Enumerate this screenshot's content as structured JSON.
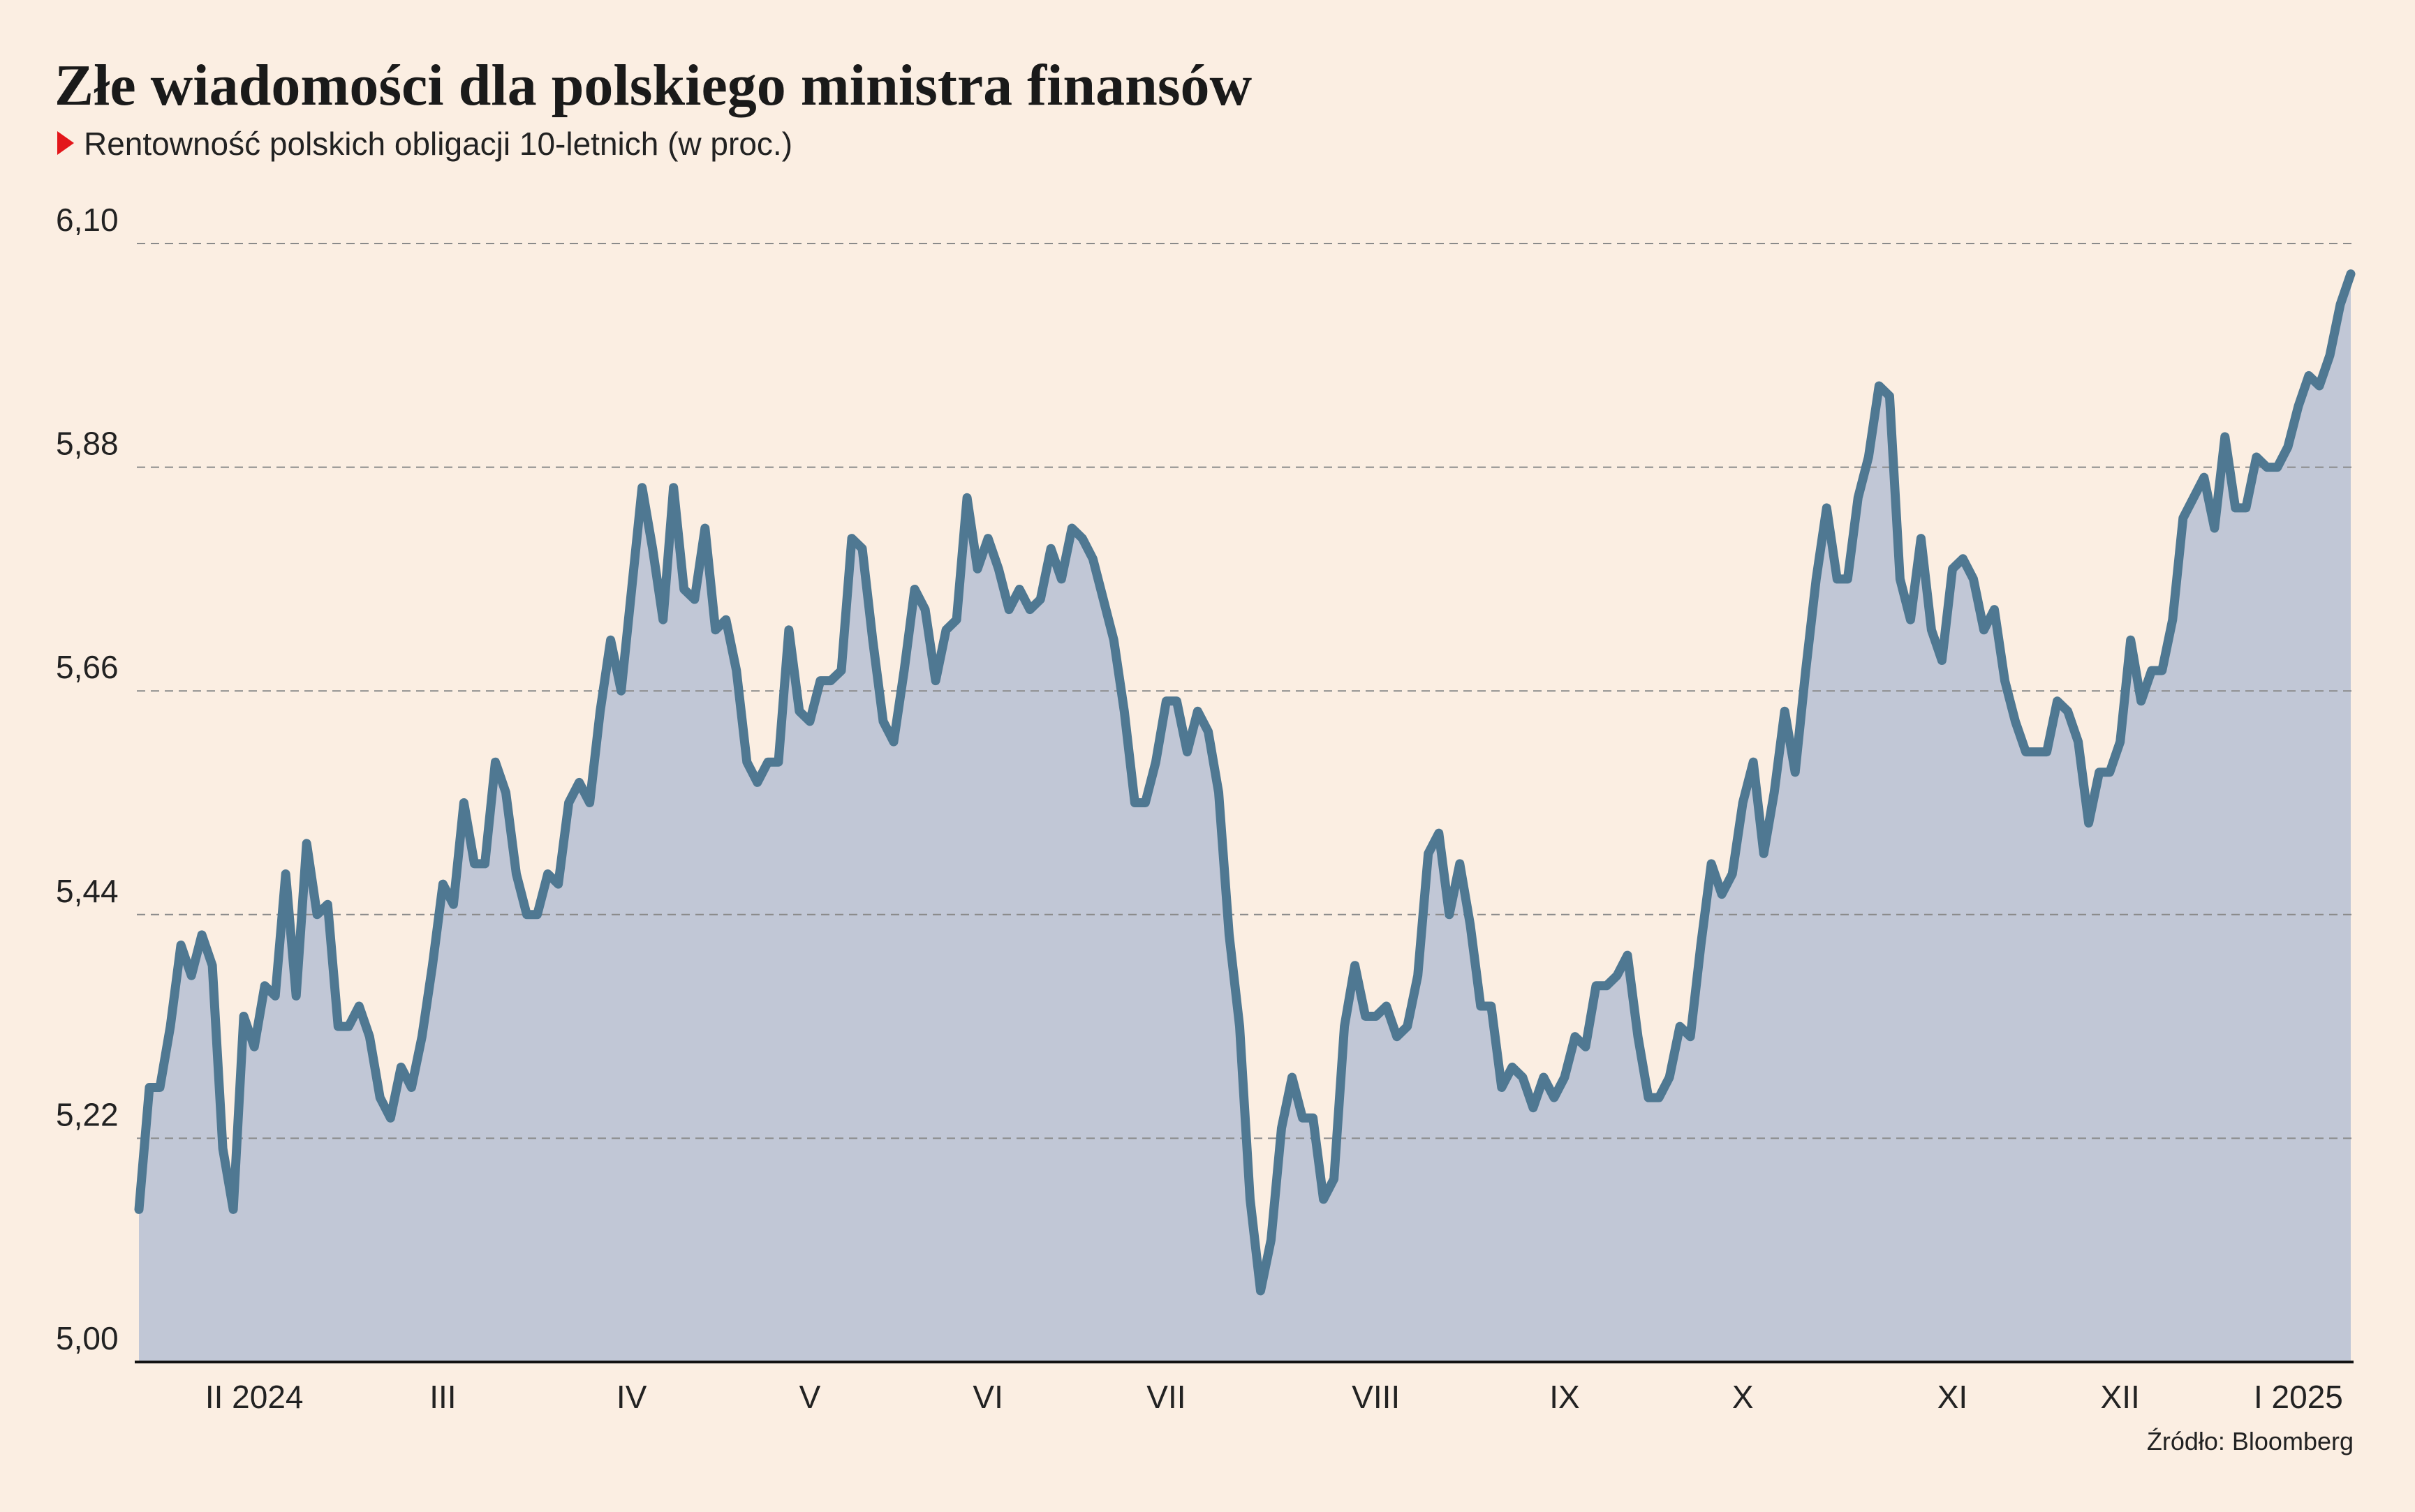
{
  "chart_data": {
    "type": "line",
    "title": "Złe wiadomości dla polskiego ministra finansów",
    "subtitle": "Rentowność polskich obligacji 10-letnich (w proc.)",
    "source": "Źródło: Bloomberg",
    "categories": [
      null,
      null,
      null,
      null,
      null,
      null,
      null,
      null,
      null,
      null,
      null,
      "II 2024",
      null,
      null,
      null,
      null,
      null,
      null,
      null,
      null,
      null,
      null,
      null,
      null,
      null,
      null,
      null,
      null,
      null,
      "III",
      null,
      null,
      null,
      null,
      null,
      null,
      null,
      null,
      null,
      null,
      null,
      null,
      null,
      null,
      null,
      null,
      null,
      "IV",
      null,
      null,
      null,
      null,
      null,
      null,
      null,
      null,
      null,
      null,
      null,
      null,
      null,
      null,
      null,
      null,
      "V",
      null,
      null,
      null,
      null,
      null,
      null,
      null,
      null,
      null,
      null,
      null,
      null,
      null,
      null,
      null,
      null,
      "VI",
      null,
      null,
      null,
      null,
      null,
      null,
      null,
      null,
      null,
      null,
      null,
      null,
      null,
      null,
      null,
      null,
      "VII",
      null,
      null,
      null,
      null,
      null,
      null,
      null,
      null,
      null,
      null,
      null,
      null,
      null,
      null,
      null,
      null,
      null,
      null,
      null,
      "VIII",
      null,
      null,
      null,
      null,
      null,
      null,
      null,
      null,
      null,
      null,
      null,
      null,
      null,
      null,
      null,
      null,
      null,
      "IX",
      null,
      null,
      null,
      null,
      null,
      null,
      null,
      null,
      null,
      null,
      null,
      null,
      null,
      null,
      null,
      null,
      "X",
      null,
      null,
      null,
      null,
      null,
      null,
      null,
      null,
      null,
      null,
      null,
      null,
      null,
      null,
      null,
      null,
      null,
      null,
      null,
      "XI",
      null,
      null,
      null,
      null,
      null,
      null,
      null,
      null,
      null,
      null,
      null,
      null,
      null,
      null,
      null,
      "XII",
      null,
      null,
      null,
      null,
      null,
      null,
      null,
      null,
      null,
      null,
      null,
      null,
      null,
      null,
      null,
      null,
      "I 2025",
      null,
      null,
      null,
      null,
      null
    ],
    "series": [
      {
        "color": "#4f7892",
        "fill": "#c1c7d6",
        "values": [
          5.15,
          5.27,
          5.27,
          5.33,
          5.41,
          5.38,
          5.42,
          5.39,
          5.21,
          5.15,
          5.34,
          5.31,
          5.37,
          5.36,
          5.48,
          5.36,
          5.51,
          5.44,
          5.45,
          5.33,
          5.33,
          5.35,
          5.32,
          5.26,
          5.24,
          5.29,
          5.27,
          5.32,
          5.39,
          5.47,
          5.45,
          5.55,
          5.49,
          5.49,
          5.59,
          5.56,
          5.48,
          5.44,
          5.44,
          5.48,
          5.47,
          5.55,
          5.57,
          5.55,
          5.64,
          5.71,
          5.66,
          5.76,
          5.86,
          5.8,
          5.73,
          5.86,
          5.76,
          5.75,
          5.82,
          5.72,
          5.73,
          5.68,
          5.59,
          5.57,
          5.59,
          5.59,
          5.72,
          5.64,
          5.63,
          5.67,
          5.67,
          5.68,
          5.81,
          5.8,
          5.71,
          5.63,
          5.61,
          5.68,
          5.76,
          5.74,
          5.67,
          5.72,
          5.73,
          5.85,
          5.78,
          5.81,
          5.78,
          5.74,
          5.76,
          5.74,
          5.75,
          5.8,
          5.77,
          5.82,
          5.81,
          5.79,
          5.75,
          5.71,
          5.64,
          5.55,
          5.55,
          5.59,
          5.65,
          5.65,
          5.6,
          5.64,
          5.62,
          5.56,
          5.42,
          5.33,
          5.16,
          5.07,
          5.12,
          5.23,
          5.28,
          5.24,
          5.24,
          5.16,
          5.18,
          5.33,
          5.39,
          5.34,
          5.34,
          5.35,
          5.32,
          5.33,
          5.38,
          5.5,
          5.52,
          5.44,
          5.49,
          5.43,
          5.35,
          5.35,
          5.27,
          5.29,
          5.28,
          5.25,
          5.28,
          5.26,
          5.28,
          5.32,
          5.31,
          5.37,
          5.37,
          5.38,
          5.4,
          5.32,
          5.26,
          5.26,
          5.28,
          5.33,
          5.32,
          5.41,
          5.49,
          5.46,
          5.48,
          5.55,
          5.59,
          5.5,
          5.56,
          5.64,
          5.58,
          5.68,
          5.77,
          5.84,
          5.77,
          5.77,
          5.85,
          5.89,
          5.96,
          5.95,
          5.77,
          5.73,
          5.81,
          5.72,
          5.69,
          5.78,
          5.79,
          5.77,
          5.72,
          5.74,
          5.67,
          5.63,
          5.6,
          5.6,
          5.6,
          5.65,
          5.64,
          5.61,
          5.53,
          5.58,
          5.58,
          5.61,
          5.71,
          5.65,
          5.68,
          5.68,
          5.73,
          5.83,
          5.85,
          5.87,
          5.82,
          5.91,
          5.84,
          5.84,
          5.89,
          5.88,
          5.88,
          5.9,
          5.94,
          5.97,
          5.96,
          5.99,
          6.04,
          6.07
        ]
      }
    ],
    "ylim": [
      5.0,
      6.1
    ],
    "yticks": [
      {
        "value": 5.0,
        "label": "5,00"
      },
      {
        "value": 5.22,
        "label": "5,22"
      },
      {
        "value": 5.44,
        "label": "5,44"
      },
      {
        "value": 5.66,
        "label": "5,66"
      },
      {
        "value": 5.88,
        "label": "5,88"
      },
      {
        "value": 6.1,
        "label": "6,10"
      }
    ],
    "grid": true
  }
}
